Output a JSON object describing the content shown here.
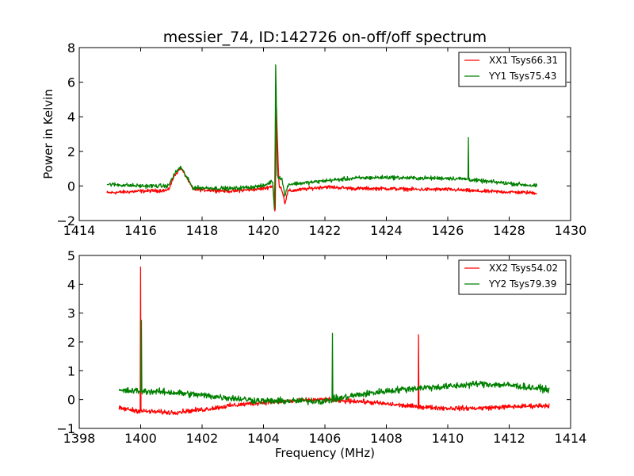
{
  "chart_data": [
    {
      "type": "line",
      "title": "messier_74, ID:142726 on-off/off spectrum",
      "xlabel": "",
      "ylabel": "Power in Kelvin",
      "xlim": [
        1414,
        1430
      ],
      "ylim": [
        -2,
        8
      ],
      "xticks": [
        "1414",
        "1416",
        "1418",
        "1420",
        "1422",
        "1424",
        "1426",
        "1428",
        "1430"
      ],
      "yticks": [
        "−2",
        "0",
        "2",
        "4",
        "6",
        "8"
      ],
      "grid": false,
      "legend_position": "top-right",
      "x_range_data": [
        1414.9,
        1428.9
      ],
      "series": [
        {
          "name": "XX1 Tsys66.31",
          "color": "#ff0000",
          "points": [
            [
              1414.9,
              -0.4
            ],
            [
              1416.0,
              -0.3
            ],
            [
              1416.9,
              -0.25
            ],
            [
              1417.1,
              0.6
            ],
            [
              1417.3,
              1.05
            ],
            [
              1417.5,
              0.5
            ],
            [
              1417.7,
              -0.2
            ],
            [
              1419.0,
              -0.3
            ],
            [
              1420.0,
              -0.15
            ],
            [
              1420.3,
              0.0
            ],
            [
              1420.38,
              -1.7
            ],
            [
              1420.42,
              4.5
            ],
            [
              1420.5,
              0.1
            ],
            [
              1420.6,
              -0.2
            ],
            [
              1420.7,
              -1.0
            ],
            [
              1420.8,
              -0.3
            ],
            [
              1421.5,
              -0.15
            ],
            [
              1422.0,
              -0.05
            ],
            [
              1423.0,
              -0.15
            ],
            [
              1424.0,
              -0.15
            ],
            [
              1425.0,
              -0.2
            ],
            [
              1426.0,
              -0.2
            ],
            [
              1427.0,
              -0.3
            ],
            [
              1428.0,
              -0.35
            ],
            [
              1428.9,
              -0.4
            ]
          ],
          "noise": 0.09,
          "spikes": [
            [
              1420.42,
              4.5
            ]
          ]
        },
        {
          "name": "YY1 Tsys75.43",
          "color": "#008000",
          "points": [
            [
              1414.9,
              0.1
            ],
            [
              1416.0,
              0.0
            ],
            [
              1416.9,
              0.0
            ],
            [
              1417.1,
              0.7
            ],
            [
              1417.3,
              1.1
            ],
            [
              1417.5,
              0.5
            ],
            [
              1417.7,
              -0.1
            ],
            [
              1419.0,
              -0.15
            ],
            [
              1420.0,
              0.0
            ],
            [
              1420.3,
              0.3
            ],
            [
              1420.36,
              -1.5
            ],
            [
              1420.4,
              7.0
            ],
            [
              1420.45,
              0.6
            ],
            [
              1420.6,
              0.4
            ],
            [
              1420.7,
              -0.6
            ],
            [
              1420.8,
              0.1
            ],
            [
              1421.5,
              0.2
            ],
            [
              1422.0,
              0.3
            ],
            [
              1423.0,
              0.45
            ],
            [
              1424.0,
              0.5
            ],
            [
              1425.0,
              0.45
            ],
            [
              1426.0,
              0.45
            ],
            [
              1426.6,
              0.4
            ],
            [
              1427.0,
              0.3
            ],
            [
              1428.0,
              0.15
            ],
            [
              1428.9,
              0.0
            ]
          ],
          "noise": 0.1,
          "spikes": [
            [
              1420.4,
              7.0
            ],
            [
              1426.67,
              2.8
            ]
          ]
        }
      ]
    },
    {
      "type": "line",
      "title": "",
      "xlabel": "Frequency (MHz)",
      "ylabel": "",
      "xlim": [
        1398,
        1414
      ],
      "ylim": [
        -1,
        5
      ],
      "xticks": [
        "1398",
        "1400",
        "1402",
        "1404",
        "1406",
        "1408",
        "1410",
        "1412",
        "1414"
      ],
      "yticks": [
        "−1",
        "0",
        "1",
        "2",
        "3",
        "4",
        "5"
      ],
      "grid": false,
      "legend_position": "top-right",
      "x_range_data": [
        1399.3,
        1413.3
      ],
      "series": [
        {
          "name": "XX2 Tsys54.02",
          "color": "#ff0000",
          "points": [
            [
              1399.3,
              -0.3
            ],
            [
              1400.0,
              -0.4
            ],
            [
              1401.0,
              -0.45
            ],
            [
              1402.0,
              -0.35
            ],
            [
              1403.0,
              -0.2
            ],
            [
              1404.0,
              -0.1
            ],
            [
              1405.0,
              -0.05
            ],
            [
              1406.0,
              0.0
            ],
            [
              1406.5,
              -0.05
            ],
            [
              1407.0,
              -0.05
            ],
            [
              1408.0,
              -0.15
            ],
            [
              1409.0,
              -0.25
            ],
            [
              1410.0,
              -0.3
            ],
            [
              1411.0,
              -0.3
            ],
            [
              1412.0,
              -0.25
            ],
            [
              1413.3,
              -0.2
            ]
          ],
          "noise": 0.07,
          "spikes": [
            [
              1400.0,
              4.6
            ],
            [
              1409.05,
              2.25
            ]
          ]
        },
        {
          "name": "YY2 Tsys79.39",
          "color": "#008000",
          "points": [
            [
              1399.3,
              0.3
            ],
            [
              1400.0,
              0.3
            ],
            [
              1401.0,
              0.25
            ],
            [
              1402.0,
              0.15
            ],
            [
              1403.0,
              0.05
            ],
            [
              1404.0,
              -0.05
            ],
            [
              1405.0,
              -0.05
            ],
            [
              1406.0,
              -0.05
            ],
            [
              1407.0,
              0.15
            ],
            [
              1408.0,
              0.3
            ],
            [
              1409.0,
              0.4
            ],
            [
              1410.0,
              0.45
            ],
            [
              1411.0,
              0.55
            ],
            [
              1412.0,
              0.5
            ],
            [
              1413.3,
              0.35
            ]
          ],
          "noise": 0.1,
          "spikes": [
            [
              1400.02,
              2.75
            ],
            [
              1406.25,
              2.3
            ]
          ]
        }
      ]
    }
  ]
}
